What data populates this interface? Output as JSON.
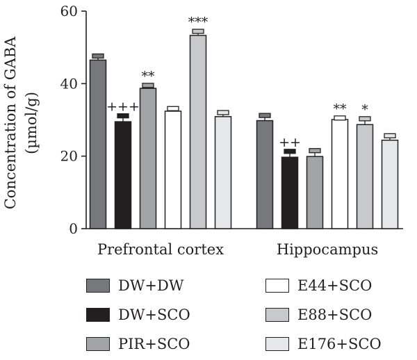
{
  "chart_data": {
    "type": "bar",
    "ylabel": "Concentration of GABA",
    "ylabel_unit": "(µmol/g)",
    "ylim": [
      0,
      60
    ],
    "yticks": [
      0,
      20,
      40,
      60
    ],
    "ytick_labels": [
      "0",
      "20",
      "40",
      "60"
    ],
    "categories": [
      "Prefrontal cortex",
      "Hippocampus"
    ],
    "legend_position": "bottom",
    "series": [
      {
        "name": "DW+DW",
        "color": "#77787b",
        "values": [
          46.5,
          29.8
        ],
        "errors": [
          1.5,
          1.8
        ],
        "annotations": [
          "",
          ""
        ]
      },
      {
        "name": "DW+SCO",
        "color": "#231f20",
        "values": [
          29.5,
          19.7
        ],
        "errors": [
          2.0,
          2.0
        ],
        "annotations": [
          "+++",
          "++"
        ]
      },
      {
        "name": "PIR+SCO",
        "color": "#a3a4a6",
        "values": [
          38.7,
          19.9
        ],
        "errors": [
          1.2,
          2.0
        ],
        "annotations": [
          "**",
          ""
        ]
      },
      {
        "name": "E44+SCO",
        "color": "#ffffff",
        "values": [
          32.4,
          30.1
        ],
        "errors": [
          1.1,
          0.8
        ],
        "annotations": [
          "",
          "**"
        ]
      },
      {
        "name": "E88+SCO",
        "color": "#c8c9cb",
        "values": [
          53.3,
          28.7
        ],
        "errors": [
          1.5,
          2.0
        ],
        "annotations": [
          "***",
          "*"
        ]
      },
      {
        "name": "E176+SCO",
        "color": "#e6e7e8",
        "values": [
          30.9,
          24.4
        ],
        "errors": [
          1.5,
          1.6
        ],
        "annotations": [
          "",
          ""
        ]
      }
    ]
  }
}
